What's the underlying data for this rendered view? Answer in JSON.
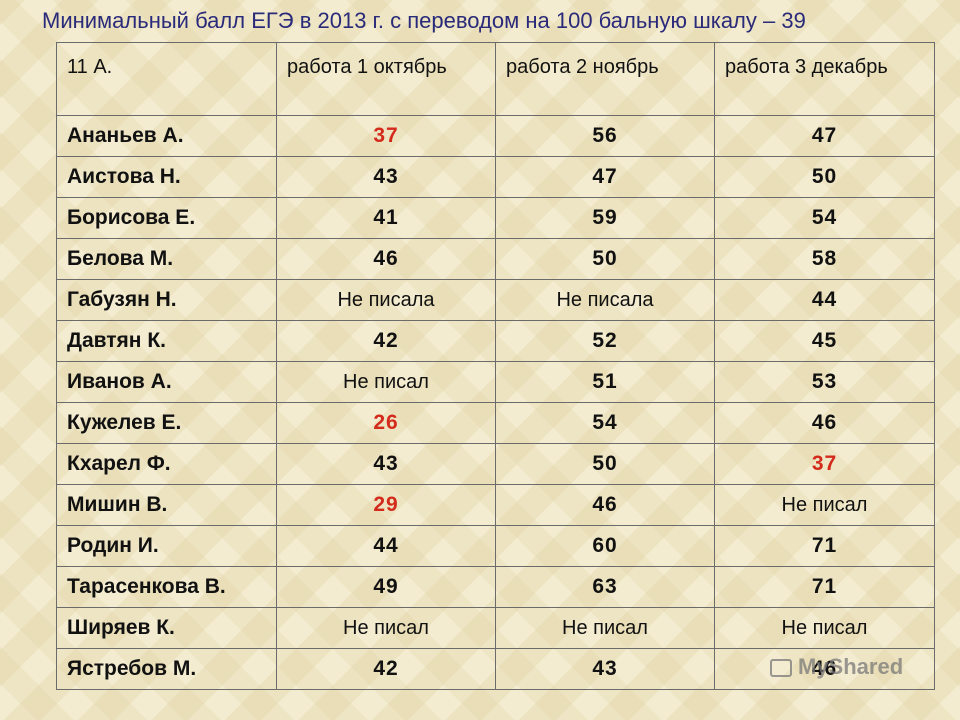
{
  "title": "Минимальный балл ЕГЭ в 2013 г. с переводом на 100 бальную шкалу  – 39",
  "colors": {
    "title": "#2a2a7a",
    "below_threshold": "#d32a1c",
    "text": "#111111"
  },
  "table": {
    "headers": [
      "11 А.",
      "работа 1 октябрь",
      "работа 2 ноябрь",
      "работа 3 декабрь"
    ],
    "rows": [
      {
        "name": "Ананьев А.",
        "w1": "37",
        "w2": "56",
        "w3": "47"
      },
      {
        "name": "Аистова Н.",
        "w1": "43",
        "w2": "47",
        "w3": "50"
      },
      {
        "name": "Борисова Е.",
        "w1": "41",
        "w2": "59",
        "w3": "54"
      },
      {
        "name": "Белова М.",
        "w1": "46",
        "w2": "50",
        "w3": "58"
      },
      {
        "name": "Габузян Н.",
        "w1": "Не писала",
        "w2": "Не писала",
        "w3": "44"
      },
      {
        "name": "Давтян К.",
        "w1": "42",
        "w2": "52",
        "w3": "45"
      },
      {
        "name": "Иванов А.",
        "w1": "Не писал",
        "w2": "51",
        "w3": "53"
      },
      {
        "name": "Кужелев Е.",
        "w1": "26",
        "w2": "54",
        "w3": "46"
      },
      {
        "name": "Кхарел Ф.",
        "w1": "43",
        "w2": "50",
        "w3": "37"
      },
      {
        "name": "Мишин В.",
        "w1": "29",
        "w2": "46",
        "w3": "Не писал"
      },
      {
        "name": "Родин И.",
        "w1": "44",
        "w2": "60",
        "w3": "71"
      },
      {
        "name": "Тарасенкова В.",
        "w1": "49",
        "w2": "63",
        "w3": "71"
      },
      {
        "name": "Ширяев К.",
        "w1": "Не писал",
        "w2": "Не писал",
        "w3": "Не писал"
      },
      {
        "name": "Ястребов М.",
        "w1": "42",
        "w2": "43",
        "w3": "46"
      }
    ]
  },
  "watermark": {
    "text": "MyShared",
    "icon": "presentation-icon"
  }
}
